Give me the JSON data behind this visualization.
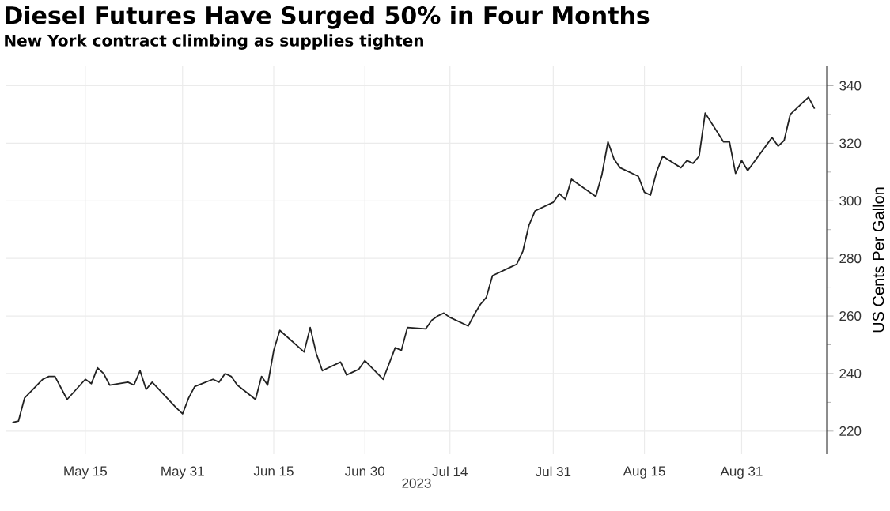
{
  "chart_data": {
    "type": "line",
    "title": "Diesel Futures Have Surged 50% in Four Months",
    "subtitle": "New York contract climbing as supplies tighten",
    "xlabel": "2023",
    "ylabel": "US Cents Per Gallon",
    "x": [
      "2023-05-03",
      "2023-05-04",
      "2023-05-05",
      "2023-05-08",
      "2023-05-09",
      "2023-05-10",
      "2023-05-12",
      "2023-05-15",
      "2023-05-16",
      "2023-05-17",
      "2023-05-18",
      "2023-05-19",
      "2023-05-22",
      "2023-05-23",
      "2023-05-24",
      "2023-05-25",
      "2023-05-26",
      "2023-05-30",
      "2023-05-31",
      "2023-06-01",
      "2023-06-02",
      "2023-06-05",
      "2023-06-06",
      "2023-06-07",
      "2023-06-08",
      "2023-06-09",
      "2023-06-12",
      "2023-06-13",
      "2023-06-14",
      "2023-06-15",
      "2023-06-16",
      "2023-06-20",
      "2023-06-21",
      "2023-06-22",
      "2023-06-23",
      "2023-06-26",
      "2023-06-27",
      "2023-06-28",
      "2023-06-29",
      "2023-06-30",
      "2023-07-03",
      "2023-07-05",
      "2023-07-06",
      "2023-07-07",
      "2023-07-10",
      "2023-07-11",
      "2023-07-12",
      "2023-07-13",
      "2023-07-14",
      "2023-07-17",
      "2023-07-18",
      "2023-07-19",
      "2023-07-20",
      "2023-07-21",
      "2023-07-24",
      "2023-07-25",
      "2023-07-26",
      "2023-07-27",
      "2023-07-28",
      "2023-07-31",
      "2023-08-01",
      "2023-08-02",
      "2023-08-03",
      "2023-08-04",
      "2023-08-07",
      "2023-08-08",
      "2023-08-09",
      "2023-08-10",
      "2023-08-11",
      "2023-08-14",
      "2023-08-15",
      "2023-08-16",
      "2023-08-17",
      "2023-08-18",
      "2023-08-21",
      "2023-08-22",
      "2023-08-23",
      "2023-08-24",
      "2023-08-25",
      "2023-08-28",
      "2023-08-29",
      "2023-08-30",
      "2023-08-31",
      "2023-09-01",
      "2023-09-05",
      "2023-09-06",
      "2023-09-07",
      "2023-09-08",
      "2023-09-11",
      "2023-09-12"
    ],
    "series": [
      {
        "color": "#222222",
        "values": [
          223,
          223.5,
          231.5,
          238,
          239,
          239,
          231,
          238,
          236.5,
          242,
          240,
          236,
          237,
          236,
          241,
          234.5,
          237,
          228,
          226,
          231.5,
          235.5,
          238,
          237,
          240,
          239,
          236,
          231,
          239,
          236,
          248,
          255,
          247.5,
          256,
          247,
          241,
          244,
          239.5,
          240.5,
          241.5,
          244.5,
          238,
          249,
          248,
          256,
          255.5,
          258.5,
          260,
          261,
          259.5,
          256.5,
          260.5,
          264,
          266.5,
          274,
          277,
          278,
          282.5,
          291.5,
          296.5,
          299.5,
          302.5,
          300.5,
          307.5,
          306,
          301.5,
          309,
          320.5,
          314.5,
          311.5,
          308.5,
          303,
          302,
          310,
          315.5,
          311.5,
          314,
          313,
          315.5,
          330.5,
          320.5,
          320.5,
          309.5,
          314,
          310.5,
          322,
          319,
          321,
          330,
          336,
          332
        ]
      }
    ],
    "xlim": [
      "2023-05-02",
      "2023-09-14"
    ],
    "xticks": [
      {
        "value": "2023-05-15",
        "label": "May 15"
      },
      {
        "value": "2023-05-31",
        "label": "May 31"
      },
      {
        "value": "2023-06-15",
        "label": "Jun 15"
      },
      {
        "value": "2023-06-30",
        "label": "Jun 30"
      },
      {
        "value": "2023-07-14",
        "label": "Jul 14"
      },
      {
        "value": "2023-07-31",
        "label": "Jul 31"
      },
      {
        "value": "2023-08-15",
        "label": "Aug 15"
      },
      {
        "value": "2023-08-31",
        "label": "Aug 31"
      }
    ],
    "ylim": [
      212,
      347
    ],
    "yticks": [
      220,
      240,
      260,
      280,
      300,
      320,
      340
    ],
    "grid": true
  }
}
